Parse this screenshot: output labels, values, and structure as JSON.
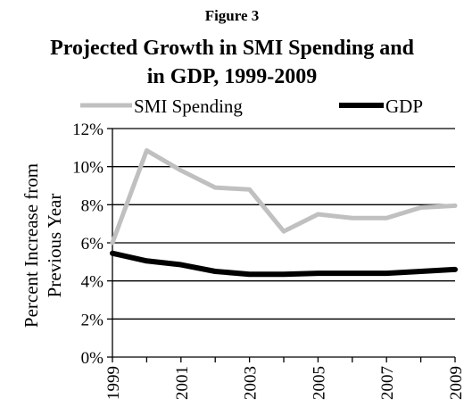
{
  "chart_data": {
    "type": "line",
    "figure_label": "Figure 3",
    "title_lines": [
      "Projected Growth in SMI Spending and",
      "in GDP, 1999-2009"
    ],
    "xlabel": "",
    "ylabel_lines": [
      "Percent Increase from",
      "Previous Year"
    ],
    "x": [
      1999,
      2000,
      2001,
      2002,
      2003,
      2004,
      2005,
      2006,
      2007,
      2008,
      2009
    ],
    "x_tick_labels": [
      "1999",
      "2001",
      "2003",
      "2005",
      "2007",
      "2009"
    ],
    "y_tick_labels": [
      "0%",
      "2%",
      "4%",
      "6%",
      "8%",
      "10%",
      "12%"
    ],
    "ylim": [
      0,
      12
    ],
    "xlim": [
      1999,
      2009
    ],
    "grid": "horizontal",
    "legend": "top",
    "series": [
      {
        "name": "SMI Spending",
        "color": "#c0c0c0",
        "values": [
          6.0,
          10.85,
          9.8,
          8.9,
          8.8,
          6.6,
          7.5,
          7.3,
          7.3,
          7.85,
          7.95
        ]
      },
      {
        "name": "GDP",
        "color": "#000000",
        "values": [
          5.45,
          5.05,
          4.85,
          4.5,
          4.35,
          4.35,
          4.4,
          4.4,
          4.4,
          4.5,
          4.6
        ]
      }
    ]
  }
}
